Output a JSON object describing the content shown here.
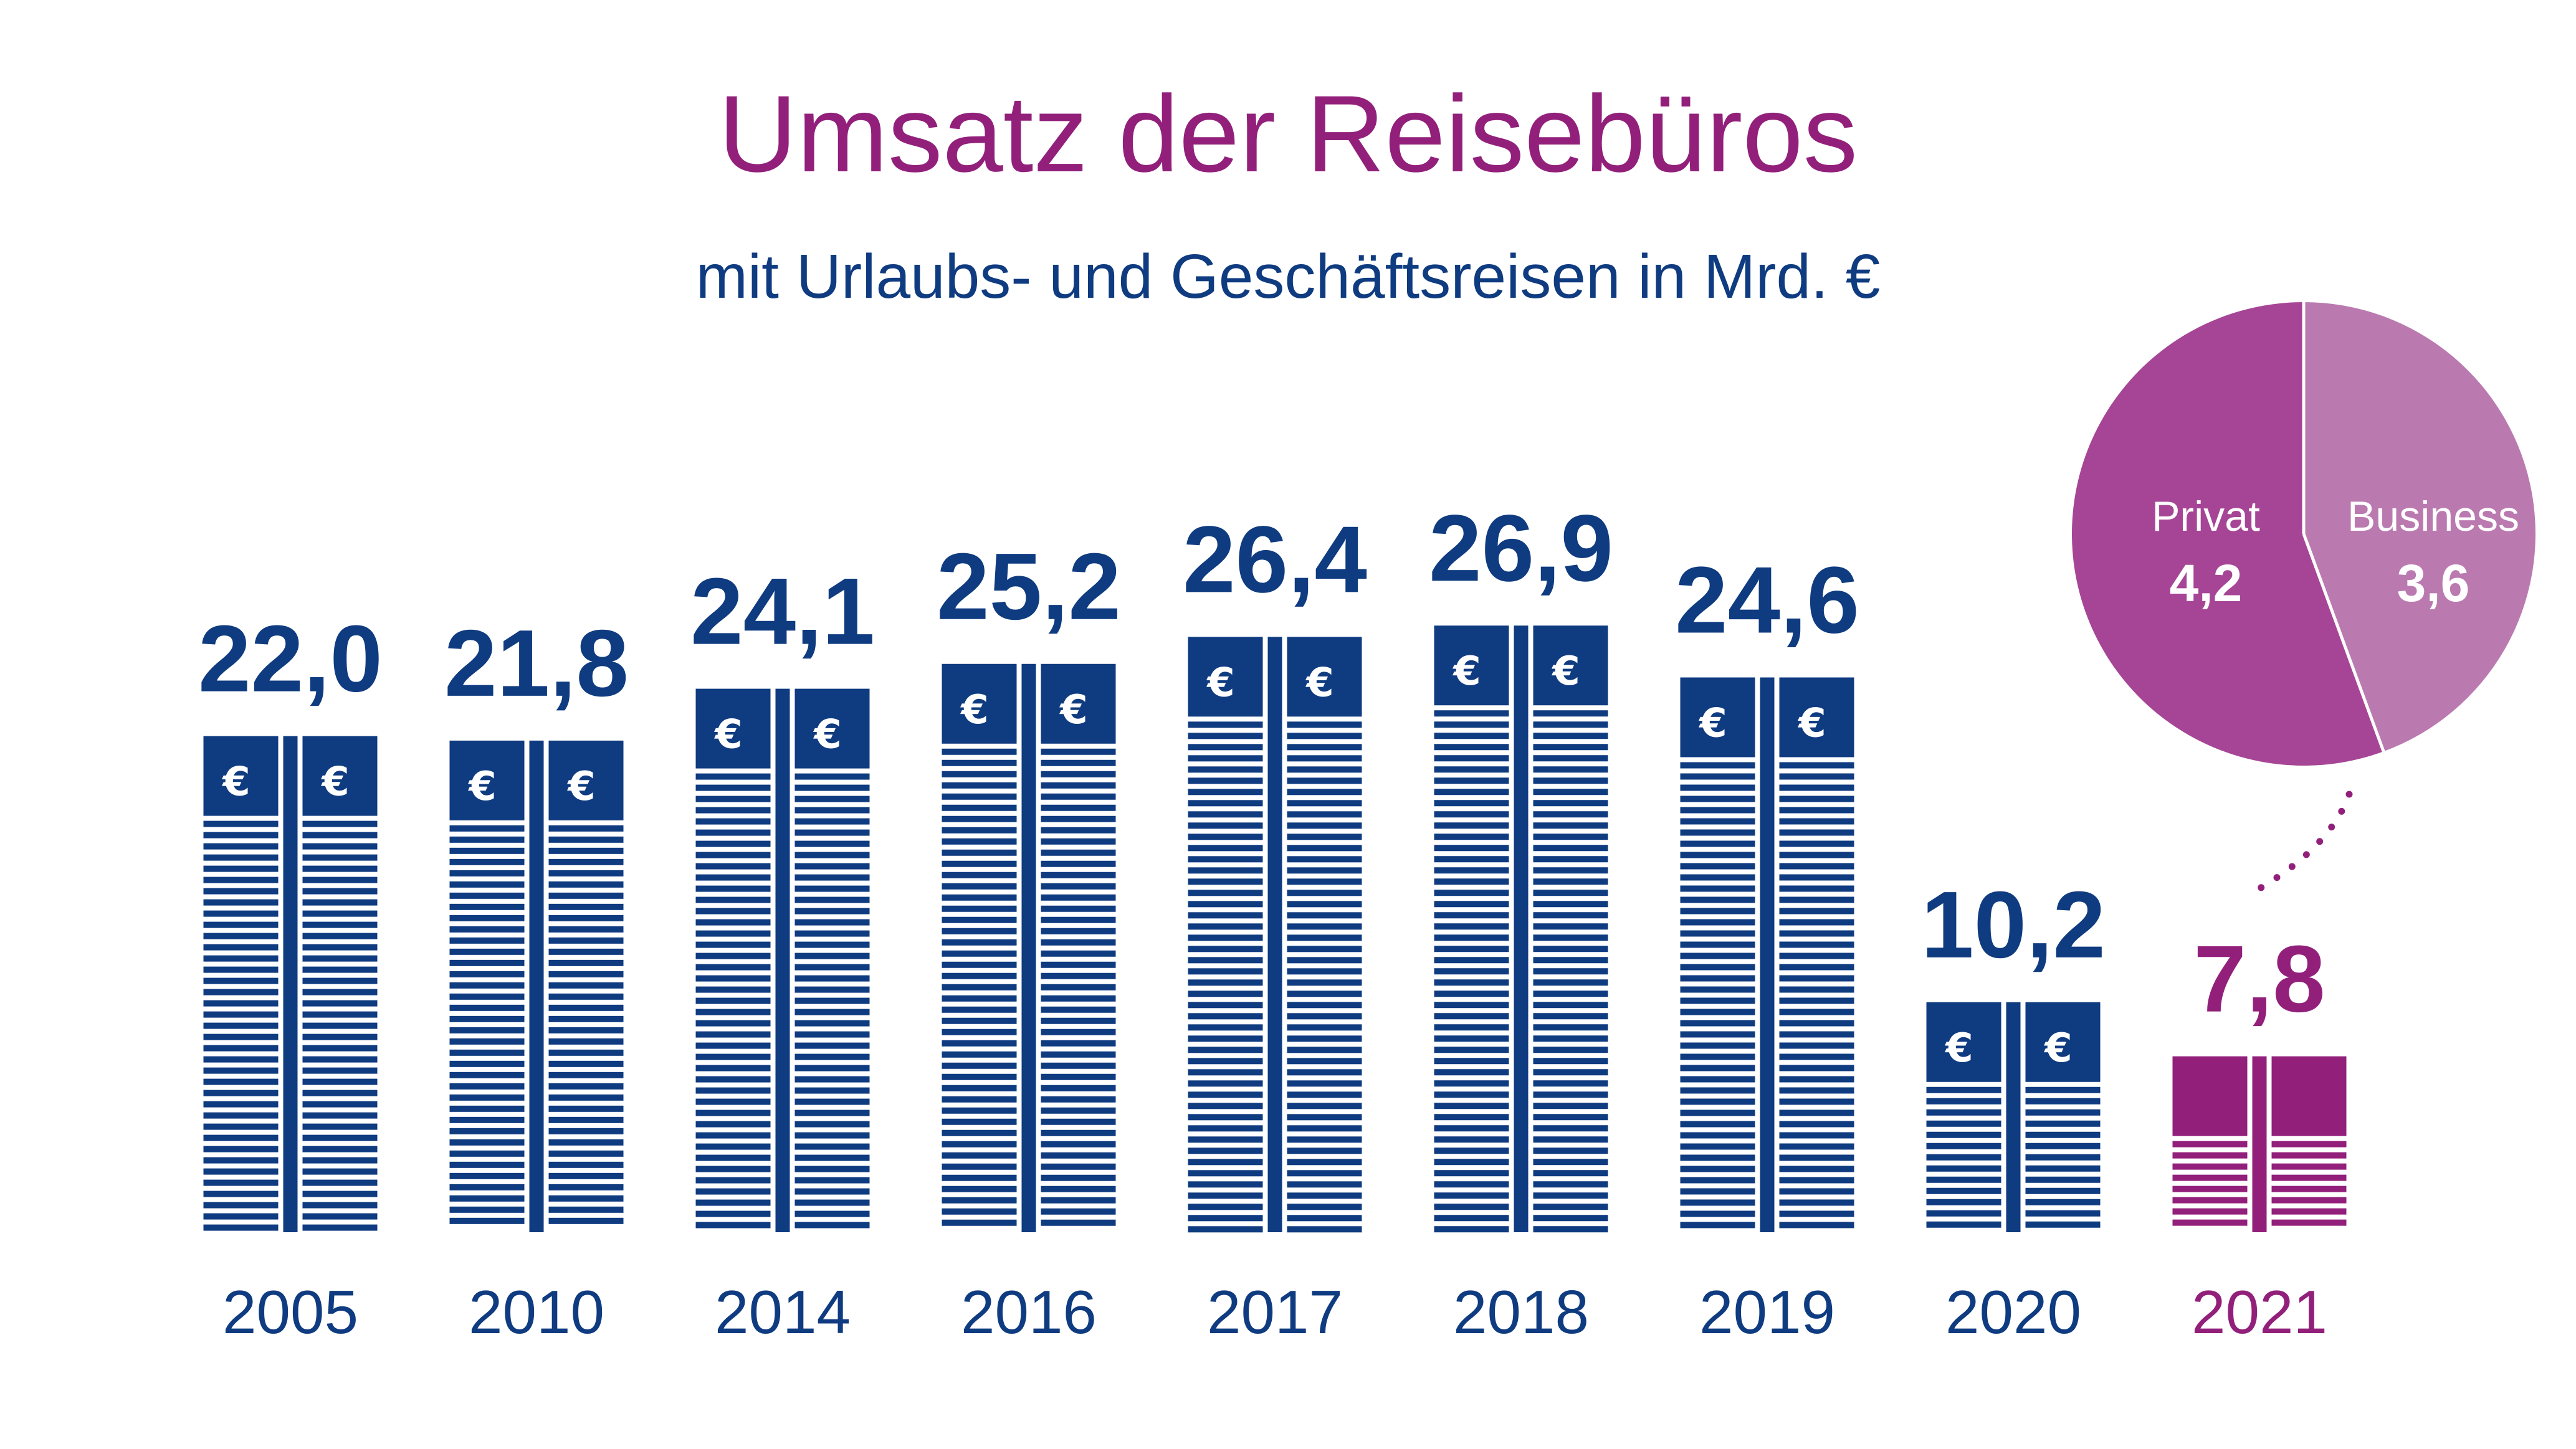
{
  "title": "Umsatz der Reisebüros",
  "subtitle": "mit Urlaubs- und Geschäftsreisen in Mrd. €",
  "colors": {
    "navy": "#0f3b80",
    "magenta": "#92207b",
    "pie_privat": "#a64596",
    "pie_business": "#ba7ab0",
    "white": "#ffffff"
  },
  "chart_data": [
    {
      "type": "bar",
      "title": "Umsatz der Reisebüros",
      "subtitle": "mit Urlaubs- und Geschäftsreisen in Mrd. €",
      "categories": [
        "2005",
        "2010",
        "2014",
        "2016",
        "2017",
        "2018",
        "2019",
        "2020",
        "2021"
      ],
      "values": [
        22.0,
        21.8,
        24.1,
        25.2,
        26.4,
        26.9,
        24.6,
        10.2,
        7.8
      ],
      "value_labels": [
        "22,0",
        "21,8",
        "24,1",
        "25,2",
        "26,4",
        "26,9",
        "24,6",
        "10,2",
        "7,8"
      ],
      "highlight_category": "2021",
      "bar_style": "stacks of banknotes",
      "euro_symbol": "€",
      "grid": false,
      "legend": "none"
    },
    {
      "type": "pie",
      "belongs_to": "2021",
      "labels": [
        "Privat",
        "Business"
      ],
      "values": [
        4.2,
        3.6
      ],
      "value_labels": [
        "4,2",
        "3,6"
      ]
    }
  ]
}
